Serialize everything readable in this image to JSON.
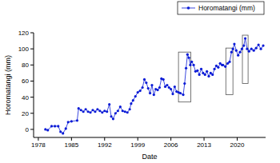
{
  "chart_data": {
    "type": "line",
    "x_label": "Date",
    "y_label": "Horomatangi (mm)",
    "x": [
      1979.5,
      1980,
      1980.8,
      1981.5,
      1982.2,
      1982.7,
      1983.2,
      1983.8,
      1984.3,
      1985,
      1986.2,
      1986.5,
      1987,
      1987.5,
      1988,
      1988.5,
      1989,
      1989.5,
      1990,
      1990.5,
      1991,
      1991.5,
      1992,
      1992.5,
      1993,
      1993.4,
      1993.8,
      1994.3,
      1994.8,
      1995.3,
      1995.8,
      1996.3,
      1996.8,
      1997.3,
      1997.6,
      1998,
      1998.5,
      1999,
      1999.5,
      2000,
      2000.4,
      2000.8,
      2001.2,
      2001.6,
      2002,
      2002.4,
      2002.8,
      2003.2,
      2003.6,
      2004,
      2004.4,
      2004.8,
      2005.2,
      2005.6,
      2006,
      2006.4,
      2006.8,
      2007.2,
      2007.6,
      2008,
      2008.6,
      2008.9,
      2009.2,
      2009.5,
      2009.8,
      2010.1,
      2010.4,
      2010.8,
      2011.2,
      2011.6,
      2012,
      2012.4,
      2012.8,
      2013.2,
      2013.6,
      2014,
      2014.4,
      2014.8,
      2015.2,
      2015.6,
      2016,
      2016.4,
      2016.8,
      2017,
      2017.5,
      2018,
      2018.4,
      2018.8,
      2019.1,
      2019.4,
      2019.8,
      2020.2,
      2020.6,
      2021,
      2021.4,
      2021.7,
      2022.1,
      2022.5,
      2023,
      2023.5,
      2024,
      2024.5,
      2025,
      2025.5
    ],
    "series": [
      {
        "name": "Horomatangi (mm)",
        "color": "#0a1bd6",
        "marker": "circle",
        "values": [
          0,
          -1,
          4,
          4,
          4,
          -3,
          -5,
          1,
          9,
          10,
          11,
          26,
          24,
          22,
          25,
          22,
          21,
          24,
          22,
          25,
          23,
          21,
          23,
          22,
          31,
          16,
          13,
          20,
          23,
          28,
          23,
          22,
          21,
          25,
          32,
          36,
          41,
          46,
          48,
          52,
          62,
          58,
          51,
          45,
          55,
          43,
          50,
          49,
          52,
          63,
          62,
          53,
          55,
          52,
          50,
          44,
          53,
          47,
          46,
          45,
          43,
          57,
          76,
          93,
          89,
          80,
          84,
          80,
          72,
          73,
          68,
          75,
          70,
          68,
          72,
          66,
          70,
          68,
          75,
          79,
          77,
          82,
          80,
          80,
          78,
          82,
          84,
          96,
          100,
          106,
          98,
          92,
          96,
          100,
          104,
          113,
          100,
          97,
          100,
          98,
          101,
          105,
          100,
          104
        ]
      }
    ],
    "xlim": [
      1977,
      2026
    ],
    "xticks": [
      1978,
      1985,
      1992,
      1999,
      2006,
      2013,
      2020
    ],
    "ylim": [
      -10,
      120
    ],
    "yticks": [
      0,
      20,
      40,
      60,
      80,
      100,
      120
    ],
    "legend": "top-right",
    "highlight_boxes": [
      {
        "x": [
          2007.6,
          2010.2
        ],
        "y": [
          34,
          96
        ]
      },
      {
        "x": [
          2017.6,
          2019.1
        ],
        "y": [
          43,
          101
        ]
      },
      {
        "x": [
          2021.1,
          2022.3
        ],
        "y": [
          57,
          117
        ]
      }
    ]
  }
}
